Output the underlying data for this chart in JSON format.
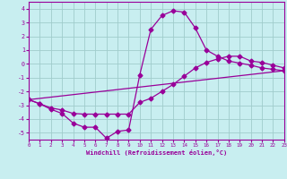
{
  "xlabel": "Windchill (Refroidissement éolien,°C)",
  "xlim": [
    0,
    23
  ],
  "ylim": [
    -5.5,
    4.5
  ],
  "xticks": [
    0,
    1,
    2,
    3,
    4,
    5,
    6,
    7,
    8,
    9,
    10,
    11,
    12,
    13,
    14,
    15,
    16,
    17,
    18,
    19,
    20,
    21,
    22,
    23
  ],
  "yticks": [
    -5,
    -4,
    -3,
    -2,
    -1,
    0,
    1,
    2,
    3,
    4
  ],
  "bg_color": "#c8eef0",
  "line_color": "#990099",
  "grid_color": "#a0cccc",
  "line1_x": [
    0,
    1,
    2,
    3,
    4,
    5,
    6,
    7,
    8,
    9,
    10,
    11,
    12,
    13,
    14,
    15,
    16,
    17,
    18,
    19,
    20,
    21,
    22,
    23
  ],
  "line1_y": [
    -2.6,
    -2.9,
    -3.3,
    -3.6,
    -4.3,
    -4.6,
    -4.6,
    -5.4,
    -4.9,
    -4.8,
    -0.8,
    2.5,
    3.5,
    3.85,
    3.75,
    2.6,
    1.0,
    0.55,
    0.2,
    0.05,
    -0.1,
    -0.3,
    -0.4,
    -0.5
  ],
  "line2_x": [
    0,
    1,
    2,
    3,
    4,
    5,
    6,
    7,
    8,
    9,
    10,
    11,
    12,
    13,
    14,
    15,
    16,
    17,
    18,
    19,
    20,
    21,
    22,
    23
  ],
  "line2_y": [
    -2.6,
    -2.9,
    -3.2,
    -3.35,
    -3.6,
    -3.65,
    -3.65,
    -3.65,
    -3.65,
    -3.65,
    -2.8,
    -2.5,
    -2.0,
    -1.5,
    -0.9,
    -0.3,
    0.1,
    0.35,
    0.55,
    0.55,
    0.2,
    0.1,
    -0.1,
    -0.3
  ],
  "line3_x": [
    0,
    23
  ],
  "line3_y": [
    -2.6,
    -0.5
  ]
}
